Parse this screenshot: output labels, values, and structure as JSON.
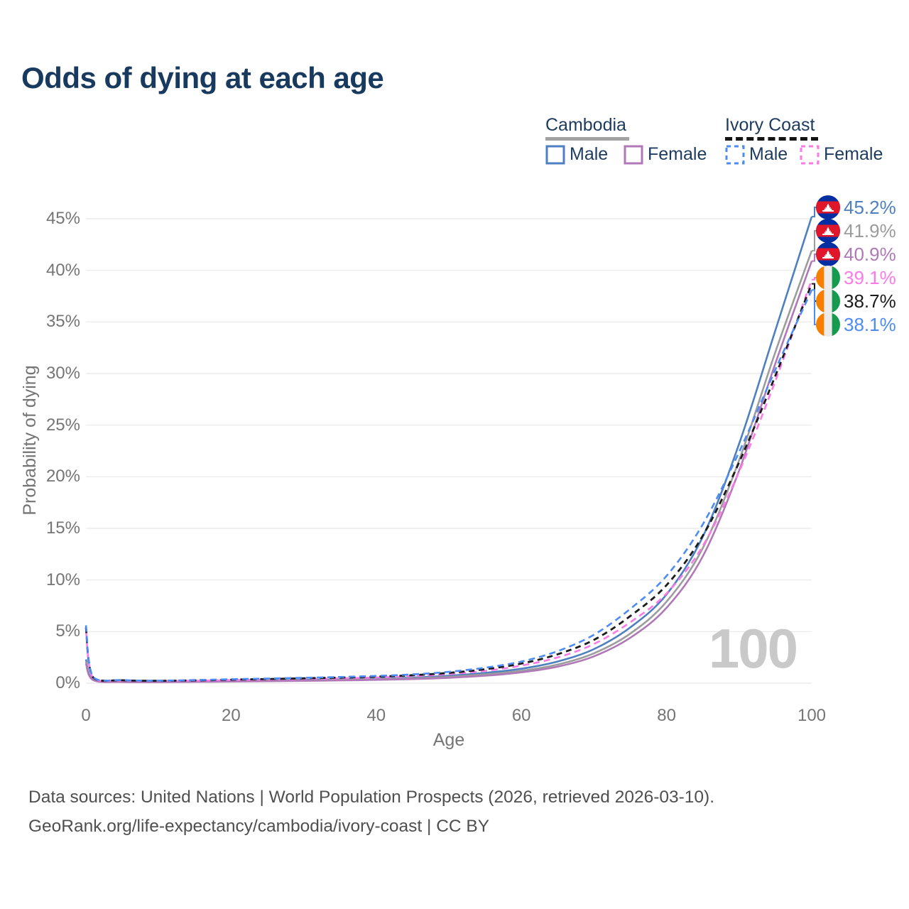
{
  "title": "Odds of dying at each age",
  "watermark": "100",
  "theme": {
    "title_color": "#173a5e",
    "legend_text_color": "#1d3b5f",
    "axis_text_color": "#757575",
    "grid_color": "#e8e8e8",
    "watermark_color": "#c9c9c9",
    "footer_text_color": "#4f4f4f",
    "cambodia_underline_color": "#a3a3a3",
    "ivory_coast_underline_color": "#151515"
  },
  "legend": {
    "groups": [
      {
        "label": "Cambodia",
        "line_style": "solid",
        "items": [
          {
            "label": "Male",
            "color": "#4d7fc1",
            "dashed": false
          },
          {
            "label": "Female",
            "color": "#b178b8",
            "dashed": false
          }
        ]
      },
      {
        "label": "Ivory Coast",
        "line_style": "dashed",
        "items": [
          {
            "label": "Male",
            "color": "#4d8bf5",
            "dashed": true
          },
          {
            "label": "Female",
            "color": "#fb7ae6",
            "dashed": true
          }
        ]
      }
    ]
  },
  "chart_data": {
    "type": "line",
    "title": "Odds of dying at each age",
    "xlabel": "Age",
    "ylabel": "Probability of dying",
    "xlim": [
      0,
      100
    ],
    "ylim": [
      0,
      45
    ],
    "grid": "horizontal",
    "x_ticks": {
      "values": [
        0,
        20,
        40,
        60,
        80,
        100
      ],
      "labels": [
        "0",
        "20",
        "40",
        "60",
        "80",
        "100"
      ]
    },
    "y_ticks": {
      "values": [
        0,
        5,
        10,
        15,
        20,
        25,
        30,
        35,
        40,
        45
      ],
      "labels": [
        "0%",
        "5%",
        "10%",
        "15%",
        "20%",
        "25%",
        "30%",
        "35%",
        "40%",
        "45%"
      ]
    },
    "ages": [
      0,
      1,
      5,
      10,
      15,
      20,
      25,
      30,
      35,
      40,
      45,
      50,
      55,
      60,
      65,
      70,
      75,
      80,
      85,
      90,
      95,
      100
    ],
    "series": [
      {
        "id": "cambodia-male",
        "name": "Cambodia Male",
        "color": "#4d7fc1",
        "dash": null,
        "width": 2.6,
        "flag": "cambodia",
        "end_label": "45.2%",
        "values": [
          2.3,
          0.35,
          0.15,
          0.12,
          0.17,
          0.22,
          0.27,
          0.32,
          0.38,
          0.45,
          0.55,
          0.72,
          1.0,
          1.4,
          2.1,
          3.3,
          5.4,
          8.6,
          14.2,
          23.2,
          34.2,
          45.2
        ]
      },
      {
        "id": "cambodia-all",
        "name": "Cambodia",
        "color": "#9c9c9c",
        "dash": null,
        "width": 2.6,
        "flag": "cambodia",
        "end_label": "41.9%",
        "values": [
          2.1,
          0.32,
          0.13,
          0.11,
          0.15,
          0.19,
          0.23,
          0.27,
          0.32,
          0.38,
          0.47,
          0.61,
          0.85,
          1.2,
          1.8,
          2.9,
          4.8,
          7.9,
          13.1,
          21.6,
          32.1,
          41.9
        ]
      },
      {
        "id": "cambodia-female",
        "name": "Cambodia Female",
        "color": "#b178b8",
        "dash": null,
        "width": 2.6,
        "flag": "cambodia",
        "end_label": "40.9%",
        "values": [
          1.9,
          0.3,
          0.12,
          0.1,
          0.13,
          0.16,
          0.19,
          0.23,
          0.27,
          0.32,
          0.4,
          0.52,
          0.72,
          1.05,
          1.6,
          2.6,
          4.4,
          7.3,
          12.3,
          20.6,
          31.0,
          40.9
        ]
      },
      {
        "id": "ivory-coast-female",
        "name": "Ivory Coast Female",
        "color": "#fb7ae6",
        "dash": "9 6",
        "width": 2.6,
        "flag": "ivory-coast",
        "end_label": "39.1%",
        "values": [
          5.1,
          0.5,
          0.26,
          0.21,
          0.24,
          0.3,
          0.35,
          0.41,
          0.47,
          0.55,
          0.68,
          0.88,
          1.2,
          1.7,
          2.5,
          3.8,
          5.9,
          8.7,
          13.3,
          20.5,
          29.3,
          39.1
        ]
      },
      {
        "id": "ivory-coast-all",
        "name": "Ivory Coast",
        "color": "#1c1c1c",
        "dash": "8 6",
        "width": 2.8,
        "flag": "ivory-coast",
        "end_label": "38.7%",
        "values": [
          5.4,
          0.55,
          0.28,
          0.23,
          0.27,
          0.34,
          0.4,
          0.47,
          0.54,
          0.63,
          0.77,
          1.0,
          1.35,
          1.9,
          2.8,
          4.2,
          6.5,
          9.5,
          14.3,
          21.4,
          29.8,
          38.7
        ]
      },
      {
        "id": "ivory-coast-male",
        "name": "Ivory Coast Male",
        "color": "#4d8bf5",
        "dash": "9 6",
        "width": 2.6,
        "flag": "ivory-coast",
        "end_label": "38.1%",
        "values": [
          5.6,
          0.6,
          0.3,
          0.25,
          0.3,
          0.38,
          0.45,
          0.52,
          0.6,
          0.7,
          0.85,
          1.1,
          1.5,
          2.1,
          3.1,
          4.7,
          7.2,
          10.4,
          15.4,
          22.4,
          30.4,
          38.1
        ]
      }
    ]
  },
  "footer": {
    "line1": "Data sources: United Nations | World Population Prospects (2026, retrieved 2026-03-10).",
    "line2": "GeoRank.org/life-expectancy/cambodia/ivory-coast | CC BY"
  }
}
